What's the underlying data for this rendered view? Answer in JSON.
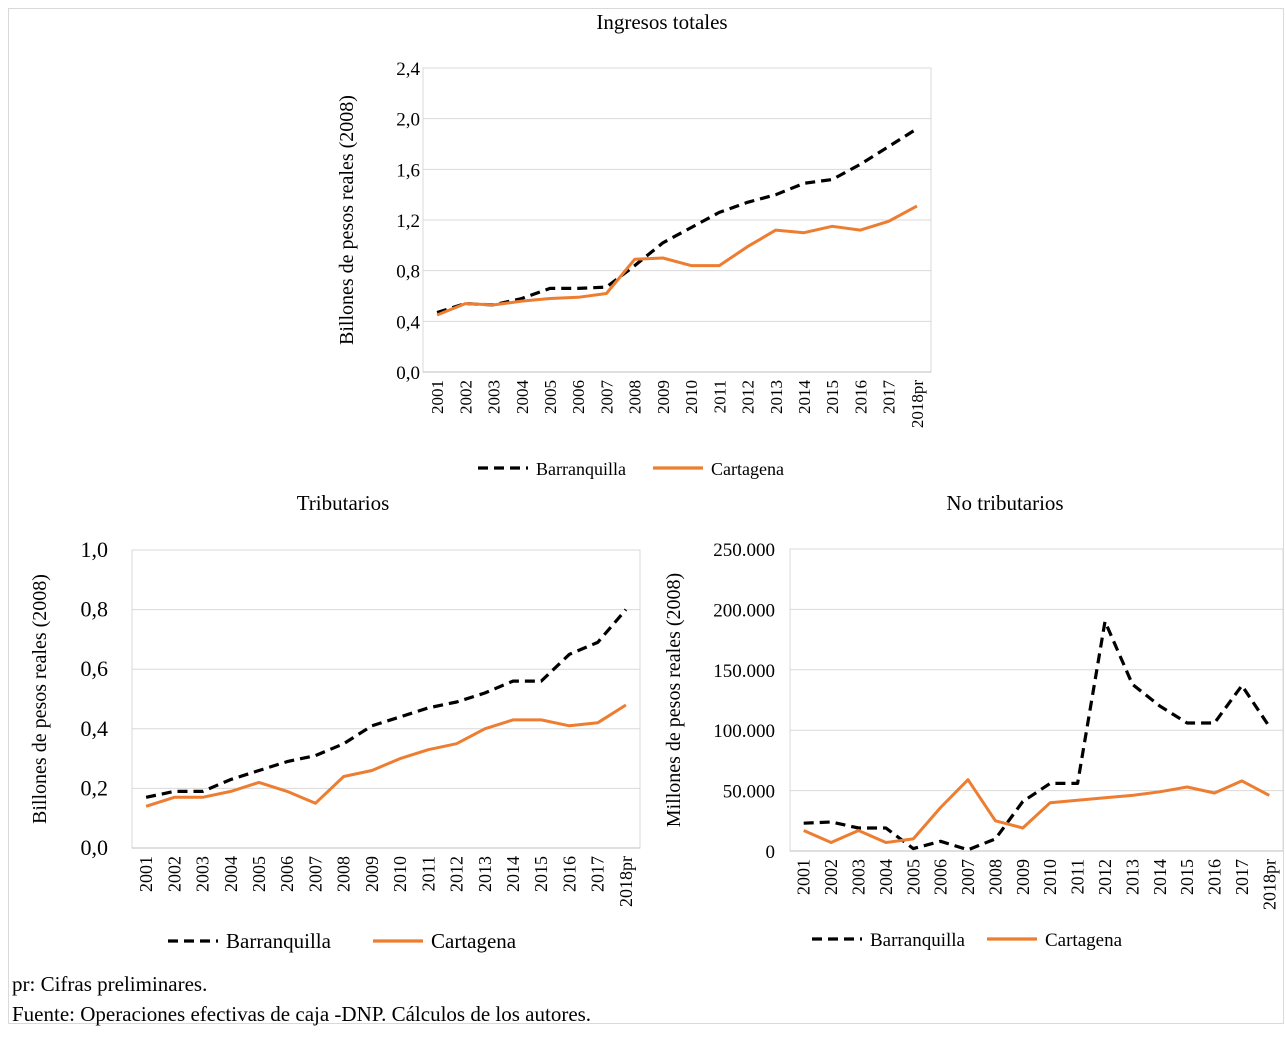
{
  "colors": {
    "barranquilla": "#000000",
    "cartagena": "#ED7D31",
    "gridline": "#d9d9d9"
  },
  "chart_data": [
    {
      "type": "line",
      "title": "Ingresos totales",
      "ylabel": "Billones  de pesos reales (2008)",
      "xlabel": "",
      "categories": [
        "2001",
        "2002",
        "2003",
        "2004",
        "2005",
        "2006",
        "2007",
        "2008",
        "2009",
        "2010",
        "2011",
        "2012",
        "2013",
        "2014",
        "2015",
        "2016",
        "2017",
        "2018pr"
      ],
      "ylim": [
        0,
        2.4
      ],
      "yticks": [
        "0,0",
        "0,4",
        "0,8",
        "1,2",
        "1,6",
        "2,0",
        "2,4"
      ],
      "yticks_values": [
        0,
        0.4,
        0.8,
        1.2,
        1.6,
        2.0,
        2.4
      ],
      "legend": "bottom",
      "series": [
        {
          "name": "Barranquilla",
          "style": "dashed",
          "values": [
            0.47,
            0.54,
            0.53,
            0.58,
            0.66,
            0.66,
            0.67,
            0.84,
            1.02,
            1.14,
            1.26,
            1.34,
            1.4,
            1.49,
            1.52,
            1.64,
            1.78,
            1.92
          ]
        },
        {
          "name": "Cartagena",
          "style": "solid",
          "values": [
            0.45,
            0.54,
            0.53,
            0.56,
            0.58,
            0.59,
            0.62,
            0.89,
            0.9,
            0.84,
            0.84,
            0.99,
            1.12,
            1.1,
            1.15,
            1.12,
            1.19,
            1.31
          ]
        }
      ]
    },
    {
      "type": "line",
      "title": "Tributarios",
      "ylabel": "Billones  de pesos reales  (2008)",
      "xlabel": "",
      "categories": [
        "2001",
        "2002",
        "2003",
        "2004",
        "2005",
        "2006",
        "2007",
        "2008",
        "2009",
        "2010",
        "2011",
        "2012",
        "2013",
        "2014",
        "2015",
        "2016",
        "2017",
        "2018pr"
      ],
      "ylim": [
        0,
        1.0
      ],
      "yticks": [
        "0,0",
        "0,2",
        "0,4",
        "0,6",
        "0,8",
        "1,0"
      ],
      "yticks_values": [
        0,
        0.2,
        0.4,
        0.6,
        0.8,
        1.0
      ],
      "legend": "bottom",
      "series": [
        {
          "name": "Barranquilla",
          "style": "dashed",
          "values": [
            0.17,
            0.19,
            0.19,
            0.23,
            0.26,
            0.29,
            0.31,
            0.35,
            0.41,
            0.44,
            0.47,
            0.49,
            0.52,
            0.56,
            0.56,
            0.65,
            0.69,
            0.8
          ]
        },
        {
          "name": "Cartagena",
          "style": "solid",
          "values": [
            0.14,
            0.17,
            0.17,
            0.19,
            0.22,
            0.19,
            0.15,
            0.24,
            0.26,
            0.3,
            0.33,
            0.35,
            0.4,
            0.43,
            0.43,
            0.41,
            0.42,
            0.48
          ]
        }
      ]
    },
    {
      "type": "line",
      "title": "No tributarios",
      "ylabel": "Millones  de pesos reales (2008)",
      "xlabel": "",
      "categories": [
        "2001",
        "2002",
        "2003",
        "2004",
        "2005",
        "2006",
        "2007",
        "2008",
        "2009",
        "2010",
        "2011",
        "2012",
        "2013",
        "2014",
        "2015",
        "2016",
        "2017",
        "2018pr"
      ],
      "ylim": [
        0,
        250000
      ],
      "yticks": [
        "0",
        "50.000",
        "100.000",
        "150.000",
        "200.000",
        "250.000"
      ],
      "yticks_values": [
        0,
        50000,
        100000,
        150000,
        200000,
        250000
      ],
      "legend": "bottom",
      "series": [
        {
          "name": "Barranquilla",
          "style": "dashed",
          "values": [
            23000,
            24000,
            19000,
            19000,
            2000,
            8000,
            1000,
            10000,
            41000,
            56000,
            56000,
            190000,
            138000,
            120000,
            106000,
            106000,
            137000,
            103000
          ]
        },
        {
          "name": "Cartagena",
          "style": "solid",
          "values": [
            17000,
            7000,
            17000,
            7000,
            10000,
            36000,
            59000,
            25000,
            19000,
            40000,
            42000,
            44000,
            46000,
            49000,
            53000,
            48000,
            58000,
            46000
          ]
        }
      ]
    }
  ],
  "notes": {
    "pr": "pr: Cifras preliminares.",
    "source": "Fuente: Operaciones efectivas de caja -DNP. Cálculos de los autores."
  }
}
